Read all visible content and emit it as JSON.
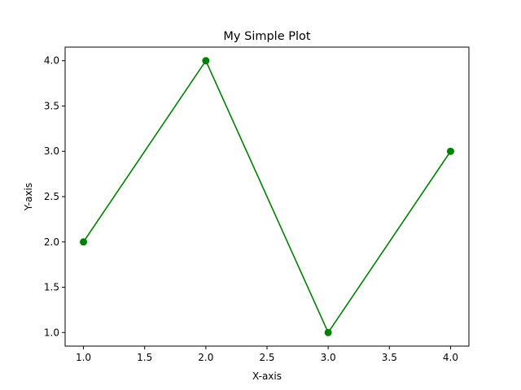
{
  "chart_data": {
    "type": "line",
    "title": "My Simple Plot",
    "xlabel": "X-axis",
    "ylabel": "Y-axis",
    "x": [
      1.0,
      2.0,
      3.0,
      4.0
    ],
    "series": [
      {
        "values": [
          2.0,
          4.0,
          1.0,
          3.0
        ],
        "color": "#008000",
        "marker": "circle"
      }
    ],
    "xlim": [
      0.85,
      4.15
    ],
    "ylim": [
      0.85,
      4.15
    ],
    "xticks": [
      "1.0",
      "1.5",
      "2.0",
      "2.5",
      "3.0",
      "3.5",
      "4.0"
    ],
    "yticks": [
      "1.0",
      "1.5",
      "2.0",
      "2.5",
      "3.0",
      "3.5",
      "4.0"
    ],
    "grid": false,
    "legend": false
  }
}
